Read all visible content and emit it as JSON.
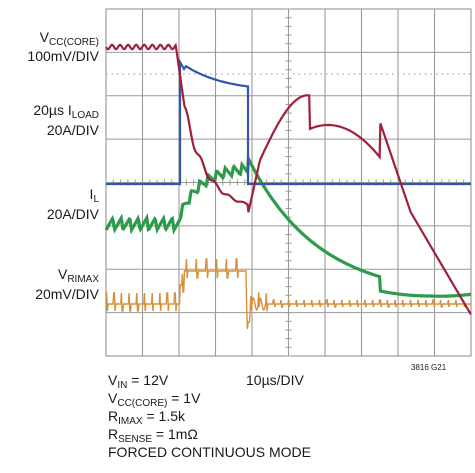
{
  "chart_data": {
    "type": "line",
    "subtype": "oscilloscope-capture",
    "grid": "on",
    "x_divisions": 10,
    "y_divisions": 8,
    "time_per_div": "10µs/DIV",
    "channels": [
      {
        "name": "VCC(CORE)",
        "scale": "100mV/DIV",
        "color": "#a0203a"
      },
      {
        "name": "ILOAD",
        "scale": "20A/DIV",
        "color": "#3355b0"
      },
      {
        "name": "IL",
        "scale": "20A/DIV",
        "color": "#2e9a4c"
      },
      {
        "name": "VRIMAX",
        "scale": "20mV/DIV",
        "color": "#d8903a"
      }
    ],
    "ilabels": {
      "vcc_line1_main": "V",
      "vcc_line1_sub": "CC(CORE)",
      "vcc_line2": "100mV/DIV",
      "iload_pre": "20µs I",
      "iload_sub": "LOAD",
      "iload_scale": "20A/DIV",
      "il_main": "I",
      "il_sub": "L",
      "il_scale": "20A/DIV",
      "vr_main": "V",
      "vr_sub": "RIMAX",
      "vr_scale": "20mV/DIV"
    },
    "conditions": {
      "vin_main": "V",
      "vin_sub": "IN",
      "vin_val": " = 12V",
      "timebase": "10µs/DIV",
      "vcc_main": "V",
      "vcc_sub": "CC(CORE)",
      "vcc_val": " = 1V",
      "rimax_main": "R",
      "rimax_sub": "IMAX",
      "rimax_val": " = 1.5k",
      "rsense_main": "R",
      "rsense_sub": "SENSE",
      "rsense_val": " = 1mΩ",
      "mode": "FORCED CONTINUOUS MODE"
    },
    "figure_id": "3816 G21"
  },
  "colors": {
    "grid": "#9a9a9a",
    "frame": "#8a8a8a"
  }
}
